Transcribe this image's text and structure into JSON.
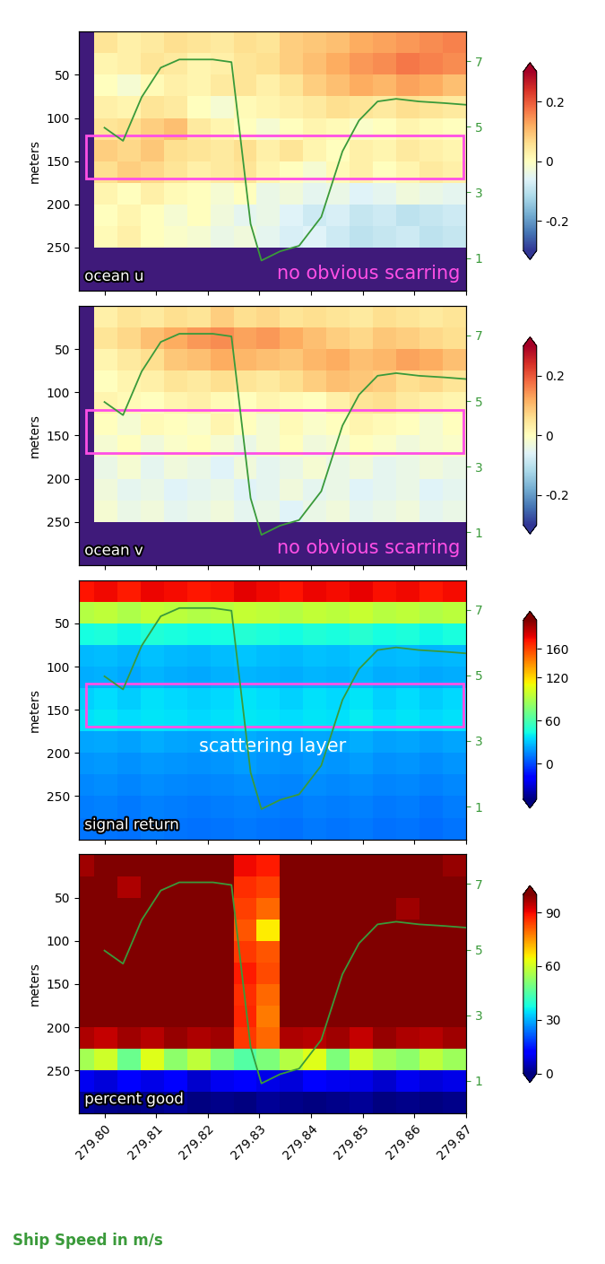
{
  "chart_data": {
    "type": "heatmap",
    "y_label": "meters",
    "x_edges": [
      279.795,
      279.798,
      279.8025,
      279.807,
      279.8115,
      279.816,
      279.8205,
      279.825,
      279.8295,
      279.834,
      279.8385,
      279.843,
      279.8475,
      279.852,
      279.8565,
      279.861,
      279.8655,
      279.87
    ],
    "depth_edges": [
      0,
      25,
      50,
      75,
      100,
      125,
      150,
      175,
      200,
      225,
      250,
      275,
      300
    ],
    "xlim": [
      279.795,
      279.87
    ],
    "xticks": [
      {
        "value": 279.8,
        "label": "279.80"
      },
      279.81,
      279.82,
      279.83,
      279.84,
      279.85,
      279.86,
      279.87
    ],
    "ylim": [
      300,
      0
    ],
    "yticks": [
      50,
      100,
      150,
      200,
      250
    ],
    "y2lim": [
      0,
      7.9
    ],
    "y2ticks": [
      1,
      3,
      5,
      7
    ],
    "series": [
      {
        "name": "Ship Speed in m/s",
        "color": "#3a9a3a",
        "axis": "y2",
        "type": "line",
        "x": [
          279.8,
          279.8036,
          279.8072,
          279.8109,
          279.8145,
          279.821,
          279.8246,
          279.8283,
          279.8304,
          279.834,
          279.8377,
          279.842,
          279.8461,
          279.8493,
          279.8529,
          279.8565,
          279.8609,
          279.8659,
          279.87
        ],
        "values": [
          4.97,
          4.57,
          5.9,
          6.8,
          7.05,
          7.05,
          6.97,
          2.04,
          0.92,
          1.2,
          1.37,
          2.25,
          4.25,
          5.19,
          5.77,
          5.85,
          5.77,
          5.72,
          5.67
        ]
      }
    ],
    "panels": [
      {
        "label": "ocean u",
        "annotation": "no obvious scarring",
        "highlight": {
          "x": [
            279.7965,
            279.8695
          ],
          "depth": [
            120,
            170
          ],
          "color": "#ff4fe6"
        },
        "color_range": [
          -0.3,
          0.3
        ],
        "color_ticks": [
          -0.2,
          0,
          0.2
        ],
        "cells": [
          [
            null,
            0.05,
            0.03,
            0.04,
            0.06,
            0.05,
            0.04,
            0.06,
            0.05,
            0.08,
            0.09,
            0.1,
            0.12,
            0.13,
            0.14,
            0.15,
            0.16
          ],
          [
            null,
            0.02,
            0.03,
            0.05,
            0.04,
            0.02,
            0.03,
            0.05,
            0.06,
            0.08,
            0.1,
            0.12,
            0.14,
            0.15,
            0.17,
            0.16,
            0.15
          ],
          [
            null,
            0.0,
            -0.02,
            0.01,
            0.03,
            0.02,
            0.04,
            0.05,
            0.03,
            0.05,
            0.08,
            0.1,
            0.12,
            0.11,
            0.13,
            0.12,
            0.1
          ],
          [
            null,
            0.03,
            0.02,
            0.05,
            0.04,
            0.0,
            -0.02,
            0.01,
            0.02,
            0.03,
            0.04,
            0.06,
            0.05,
            0.04,
            0.06,
            0.05,
            0.04
          ],
          [
            null,
            0.05,
            0.06,
            0.08,
            0.1,
            0.04,
            0.02,
            0.0,
            -0.02,
            0.0,
            0.02,
            0.01,
            -0.01,
            0.0,
            0.02,
            0.01,
            0.0
          ],
          [
            null,
            0.08,
            0.07,
            0.09,
            0.06,
            0.05,
            0.04,
            0.06,
            0.03,
            0.05,
            0.02,
            0.0,
            0.03,
            0.02,
            0.04,
            0.03,
            0.02
          ],
          [
            null,
            0.06,
            0.08,
            0.07,
            0.05,
            0.03,
            0.04,
            0.05,
            0.02,
            0.0,
            -0.02,
            0.01,
            0.03,
            0.0,
            0.02,
            0.04,
            0.03
          ],
          [
            null,
            0.02,
            0.0,
            0.03,
            0.01,
            0.0,
            -0.02,
            0.0,
            -0.04,
            -0.03,
            -0.05,
            -0.04,
            -0.06,
            -0.05,
            -0.03,
            -0.04,
            -0.05
          ],
          [
            null,
            0.0,
            0.02,
            0.0,
            -0.02,
            0.0,
            -0.03,
            -0.05,
            -0.04,
            -0.06,
            -0.08,
            -0.07,
            -0.09,
            -0.08,
            -0.1,
            -0.09,
            -0.08
          ],
          [
            null,
            0.01,
            0.03,
            0.0,
            -0.01,
            -0.02,
            -0.04,
            -0.03,
            -0.05,
            -0.07,
            -0.06,
            -0.08,
            -0.1,
            -0.09,
            -0.08,
            -0.1,
            -0.09
          ],
          [
            null,
            null,
            null,
            null,
            null,
            null,
            null,
            null,
            null,
            null,
            null,
            null,
            null,
            null,
            null,
            null,
            null
          ],
          [
            null,
            null,
            null,
            null,
            null,
            null,
            null,
            null,
            null,
            null,
            null,
            null,
            null,
            null,
            null,
            null,
            null
          ]
        ]
      },
      {
        "label": "ocean v",
        "annotation": "no obvious scarring",
        "highlight": {
          "x": [
            279.7965,
            279.8695
          ],
          "depth": [
            120,
            170
          ],
          "color": "#ff4fe6"
        },
        "color_range": [
          -0.3,
          0.3
        ],
        "color_ticks": [
          -0.2,
          0,
          0.2
        ],
        "cells": [
          [
            null,
            0.03,
            0.05,
            0.04,
            0.06,
            0.05,
            0.08,
            0.06,
            0.07,
            0.05,
            0.06,
            0.05,
            0.04,
            0.06,
            0.05,
            0.04,
            0.05
          ],
          [
            null,
            0.05,
            0.07,
            0.1,
            0.12,
            0.14,
            0.15,
            0.13,
            0.14,
            0.12,
            0.1,
            0.08,
            0.07,
            0.09,
            0.08,
            0.07,
            0.06
          ],
          [
            null,
            0.02,
            0.04,
            0.06,
            0.09,
            0.1,
            0.12,
            0.11,
            0.1,
            0.09,
            0.11,
            0.12,
            0.1,
            0.11,
            0.13,
            0.12,
            0.1
          ],
          [
            null,
            0.0,
            0.02,
            0.03,
            0.05,
            0.04,
            0.06,
            0.05,
            0.04,
            0.06,
            0.08,
            0.1,
            0.09,
            0.08,
            0.06,
            0.07,
            0.05
          ],
          [
            null,
            0.02,
            0.01,
            0.0,
            0.02,
            0.03,
            0.01,
            0.0,
            0.02,
            0.01,
            0.0,
            0.03,
            0.05,
            0.06,
            0.04,
            0.03,
            0.02
          ],
          [
            null,
            0.0,
            -0.02,
            0.01,
            0.0,
            -0.01,
            0.02,
            0.0,
            -0.02,
            0.01,
            -0.01,
            0.0,
            0.02,
            0.01,
            0.0,
            -0.02,
            0.0
          ],
          [
            null,
            -0.02,
            0.0,
            -0.03,
            -0.01,
            0.0,
            -0.02,
            -0.04,
            -0.02,
            0.0,
            -0.03,
            -0.02,
            0.0,
            -0.01,
            -0.03,
            -0.02,
            -0.01
          ],
          [
            null,
            -0.04,
            -0.02,
            -0.05,
            -0.03,
            -0.04,
            -0.06,
            -0.03,
            -0.05,
            -0.04,
            -0.02,
            -0.04,
            -0.03,
            -0.05,
            -0.04,
            -0.03,
            -0.04
          ],
          [
            null,
            -0.03,
            -0.05,
            -0.04,
            -0.06,
            -0.05,
            -0.04,
            -0.06,
            -0.05,
            -0.03,
            -0.05,
            -0.04,
            -0.06,
            -0.05,
            -0.04,
            -0.06,
            -0.05
          ],
          [
            null,
            -0.02,
            -0.04,
            -0.03,
            -0.05,
            -0.04,
            -0.03,
            -0.05,
            -0.04,
            -0.06,
            -0.04,
            -0.03,
            -0.05,
            -0.04,
            -0.03,
            -0.05,
            -0.04
          ],
          [
            null,
            null,
            null,
            null,
            null,
            null,
            null,
            null,
            null,
            null,
            null,
            null,
            null,
            null,
            null,
            null,
            null
          ],
          [
            null,
            null,
            null,
            null,
            null,
            null,
            null,
            null,
            null,
            null,
            null,
            null,
            null,
            null,
            null,
            null,
            null
          ]
        ]
      },
      {
        "label": "signal return",
        "annotation": "scattering layer",
        "highlight": {
          "x": [
            279.7965,
            279.8695
          ],
          "depth": [
            120,
            170
          ],
          "color": "#ff4fe6"
        },
        "color_range": [
          -50,
          200
        ],
        "color_ticks": [
          0,
          60,
          120,
          160
        ],
        "cells": [
          [
            172,
            175,
            170,
            176,
            174,
            171,
            173,
            178,
            175,
            172,
            176,
            174,
            177,
            173,
            175,
            171,
            174
          ],
          [
            92,
            95,
            90,
            96,
            94,
            91,
            93,
            97,
            95,
            92,
            96,
            94,
            98,
            93,
            95,
            91,
            94
          ],
          [
            44,
            46,
            42,
            47,
            45,
            43,
            44,
            48,
            46,
            43,
            47,
            45,
            49,
            44,
            46,
            42,
            45
          ],
          [
            27,
            28,
            26,
            29,
            27,
            26,
            28,
            30,
            28,
            27,
            29,
            28,
            30,
            27,
            28,
            26,
            27
          ],
          [
            24,
            25,
            23,
            26,
            24,
            23,
            25,
            26,
            25,
            24,
            26,
            25,
            27,
            24,
            25,
            23,
            24
          ],
          [
            33,
            35,
            32,
            36,
            34,
            33,
            34,
            37,
            35,
            33,
            36,
            34,
            37,
            33,
            35,
            32,
            34
          ],
          [
            36,
            38,
            35,
            37,
            36,
            34,
            36,
            38,
            37,
            35,
            37,
            36,
            39,
            35,
            37,
            34,
            36
          ],
          [
            22,
            23,
            21,
            24,
            22,
            21,
            23,
            24,
            22,
            21,
            23,
            22,
            24,
            21,
            22,
            20,
            22
          ],
          [
            18,
            19,
            17,
            19,
            18,
            17,
            18,
            20,
            18,
            17,
            19,
            18,
            20,
            17,
            18,
            16,
            18
          ],
          [
            15,
            16,
            14,
            16,
            15,
            14,
            15,
            16,
            15,
            14,
            16,
            15,
            16,
            14,
            15,
            13,
            15
          ],
          [
            12,
            13,
            11,
            13,
            12,
            11,
            12,
            13,
            12,
            11,
            13,
            12,
            13,
            11,
            12,
            10,
            12
          ],
          [
            10,
            10,
            9,
            11,
            10,
            9,
            10,
            11,
            10,
            9,
            11,
            10,
            11,
            9,
            10,
            8,
            10
          ]
        ]
      },
      {
        "label": "percent good",
        "color_range": [
          0,
          100
        ],
        "color_ticks": [
          0,
          30,
          60,
          90
        ],
        "cells": [
          [
            97,
            100,
            100,
            100,
            100,
            100,
            100,
            90,
            88,
            100,
            100,
            100,
            100,
            100,
            100,
            100,
            98
          ],
          [
            100,
            100,
            96,
            100,
            100,
            100,
            100,
            86,
            84,
            100,
            100,
            100,
            100,
            100,
            100,
            100,
            100
          ],
          [
            100,
            100,
            100,
            100,
            100,
            100,
            100,
            84,
            80,
            100,
            100,
            100,
            100,
            100,
            97,
            100,
            100
          ],
          [
            100,
            100,
            100,
            100,
            100,
            100,
            100,
            82,
            66,
            100,
            100,
            100,
            100,
            100,
            100,
            100,
            100
          ],
          [
            100,
            100,
            100,
            100,
            100,
            100,
            100,
            85,
            82,
            100,
            100,
            100,
            100,
            100,
            100,
            100,
            100
          ],
          [
            100,
            100,
            100,
            100,
            100,
            100,
            100,
            88,
            83,
            100,
            100,
            100,
            100,
            100,
            100,
            100,
            100
          ],
          [
            100,
            100,
            100,
            100,
            100,
            100,
            100,
            86,
            80,
            100,
            100,
            100,
            100,
            100,
            100,
            100,
            100
          ],
          [
            100,
            100,
            100,
            100,
            100,
            100,
            100,
            87,
            78,
            100,
            100,
            100,
            100,
            100,
            100,
            100,
            100
          ],
          [
            96,
            94,
            97,
            95,
            98,
            96,
            97,
            85,
            80,
            96,
            95,
            97,
            94,
            98,
            96,
            95,
            97
          ],
          [
            55,
            60,
            48,
            62,
            52,
            58,
            50,
            45,
            50,
            57,
            62,
            50,
            60,
            55,
            52,
            58,
            54
          ],
          [
            10,
            8,
            12,
            9,
            11,
            7,
            10,
            12,
            9,
            8,
            11,
            10,
            9,
            7,
            10,
            8,
            9
          ],
          [
            2,
            1,
            0,
            1,
            2,
            0,
            1,
            0,
            2,
            1,
            0,
            1,
            2,
            0,
            1,
            0,
            1
          ]
        ]
      }
    ]
  }
}
